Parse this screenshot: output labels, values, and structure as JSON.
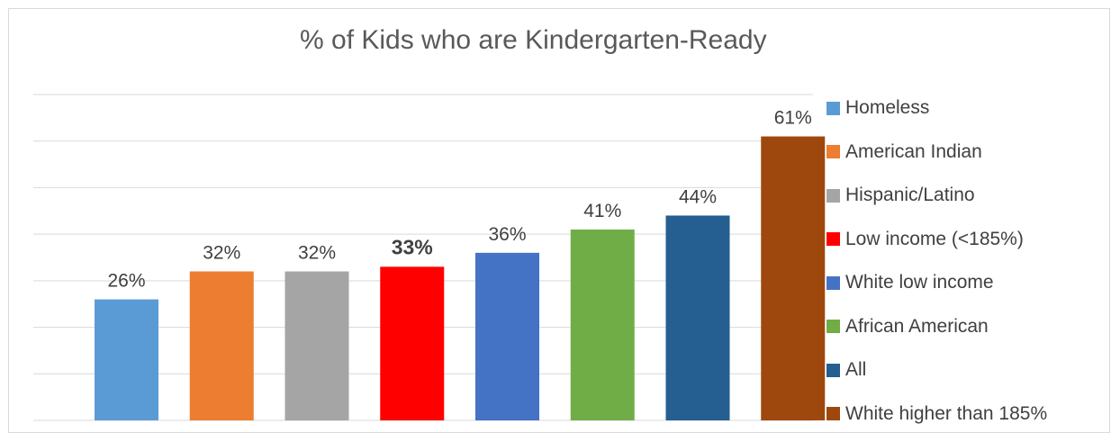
{
  "chart_data": {
    "type": "bar",
    "title": "% of Kids who are Kindergarten-Ready",
    "categories": [
      "Homeless",
      "American Indian",
      "Hispanic/Latino",
      "Low income (<185%)",
      "White low income",
      "African American",
      "All",
      "White higher than 185%"
    ],
    "values": [
      26,
      32,
      32,
      33,
      36,
      41,
      44,
      61
    ],
    "data_labels": [
      "26%",
      "32%",
      "32%",
      "33%",
      "36%",
      "41%",
      "44%",
      "61%"
    ],
    "highlighted_label_index": 3,
    "colors": [
      "#5b9bd5",
      "#ed7d31",
      "#a5a5a5",
      "#ff0000",
      "#4472c4",
      "#70ad47",
      "#255e91",
      "#9e480e"
    ],
    "xlabel": "",
    "ylabel": "",
    "ylim": [
      0,
      70
    ],
    "y_axis_labels_shown": false,
    "grid": true,
    "legend_position": "right"
  }
}
